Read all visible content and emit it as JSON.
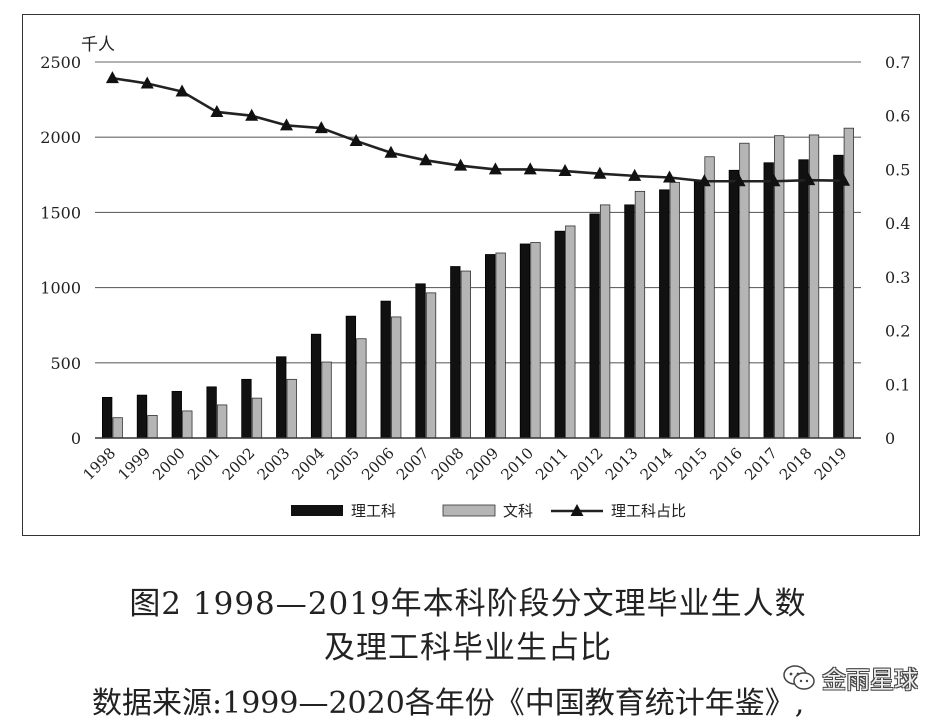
{
  "chart_data": {
    "type": "bar",
    "categories": [
      "1998",
      "1999",
      "2000",
      "2001",
      "2002",
      "2003",
      "2004",
      "2005",
      "2006",
      "2007",
      "2008",
      "2009",
      "2010",
      "2011",
      "2012",
      "2013",
      "2014",
      "2015",
      "2016",
      "2017",
      "2018",
      "2019"
    ],
    "y_unit_label": "千人",
    "ylim": [
      0,
      2500
    ],
    "y_ticks": [
      0,
      500,
      1000,
      1500,
      2000,
      2500
    ],
    "y2lim": [
      0,
      0.7
    ],
    "y2_ticks": [
      "0",
      "0.1",
      "0.2",
      "0.3",
      "0.4",
      "0.5",
      "0.6",
      "0.7"
    ],
    "grid": true,
    "legend_position": "bottom",
    "series": [
      {
        "name": "理工科",
        "kind": "bar",
        "color": "#111111",
        "values": [
          270,
          285,
          310,
          340,
          390,
          540,
          690,
          810,
          910,
          1025,
          1140,
          1220,
          1290,
          1375,
          1490,
          1550,
          1650,
          1710,
          1780,
          1830,
          1850,
          1880
        ]
      },
      {
        "name": "文科",
        "kind": "bar",
        "color": "#b5b5b5",
        "values": [
          135,
          150,
          180,
          220,
          265,
          390,
          505,
          660,
          805,
          965,
          1110,
          1230,
          1300,
          1410,
          1550,
          1640,
          1700,
          1870,
          1960,
          2010,
          2015,
          2060
        ]
      },
      {
        "name": "理工科占比",
        "kind": "line",
        "axis": "right",
        "color": "#222222",
        "values": [
          0.67,
          0.66,
          0.645,
          0.607,
          0.6,
          0.582,
          0.577,
          0.553,
          0.531,
          0.517,
          0.507,
          0.5,
          0.5,
          0.497,
          0.492,
          0.488,
          0.485,
          0.478,
          0.478,
          0.478,
          0.48,
          0.479
        ]
      }
    ]
  },
  "caption": {
    "line1": "图2 1998—2019年本科阶段分文理毕业生人数",
    "line2": "及理工科毕业生占比"
  },
  "source_note": "数据来源:1999—2020各年份《中国教育统计年鉴》,",
  "watermark": "金雨星球"
}
